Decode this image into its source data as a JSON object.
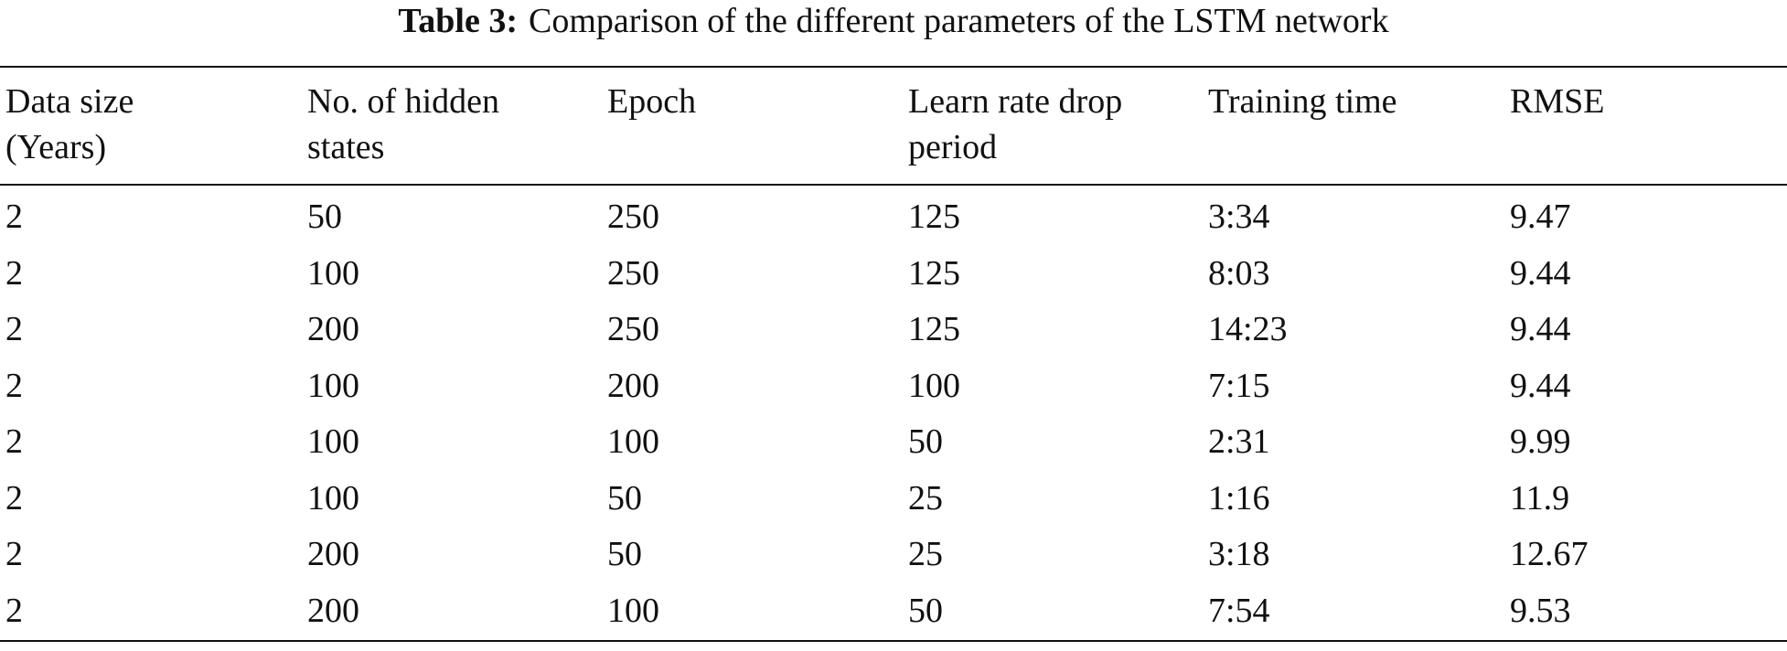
{
  "table": {
    "caption_label": "Table 3:",
    "caption": "Comparison of the different parameters of the LSTM network",
    "headers": [
      "Data size (Years)",
      "No. of hidden states",
      "Epoch",
      "Learn rate drop period",
      "Training time",
      "RMSE"
    ],
    "rows": [
      [
        2,
        50,
        250,
        125,
        "3:34",
        9.47
      ],
      [
        2,
        100,
        250,
        125,
        "8:03",
        9.44
      ],
      [
        2,
        200,
        250,
        125,
        "14:23",
        9.44
      ],
      [
        2,
        100,
        200,
        100,
        "7:15",
        9.44
      ],
      [
        2,
        100,
        100,
        50,
        "2:31",
        9.99
      ],
      [
        2,
        100,
        50,
        25,
        "1:16",
        11.9
      ],
      [
        2,
        200,
        50,
        25,
        "3:18",
        12.67
      ],
      [
        2,
        200,
        100,
        50,
        "7:54",
        9.53
      ]
    ]
  }
}
